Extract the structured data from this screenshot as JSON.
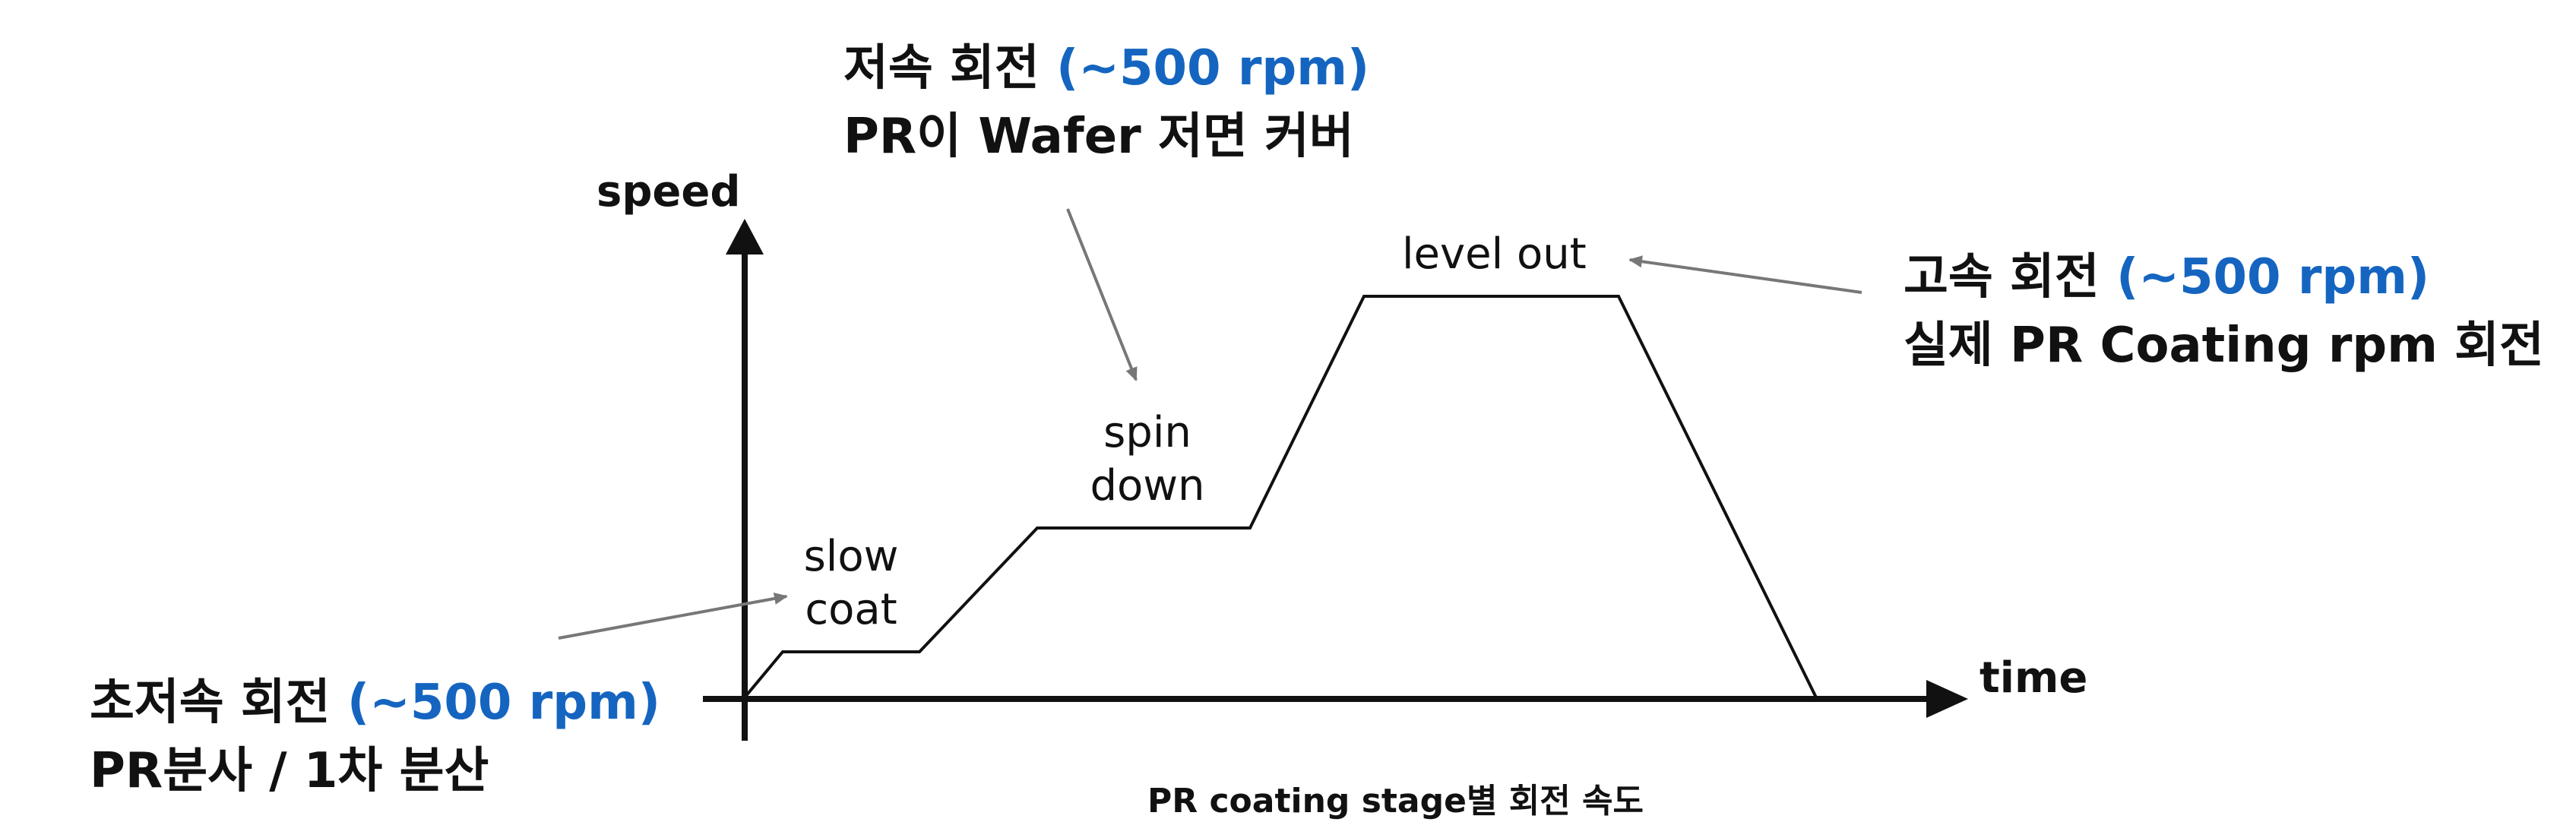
{
  "axes": {
    "y_label": "speed",
    "x_label": "time"
  },
  "stages": {
    "slow_coat": [
      "slow",
      "coat"
    ],
    "spin_down": [
      "spin",
      "down"
    ],
    "level_out": "level out"
  },
  "annotations": {
    "low": {
      "line1_main": "저속 회전 ",
      "line1_rpm": "(~500 rpm)",
      "line2": "PR이 Wafer 저면 커버"
    },
    "high": {
      "line1_main": "고속 회전 ",
      "line1_rpm": "(~500 rpm)",
      "line2": "실제 PR Coating rpm 회전"
    },
    "ultra_low": {
      "line1_main": "초저속 회전 ",
      "line1_rpm": "(~500 rpm)",
      "line2": "PR분사 / 1차 분산"
    }
  },
  "caption": "PR coating stage별 회전 속도",
  "colors": {
    "highlight": "#1565c0",
    "arrow": "#777777",
    "line": "#111111"
  }
}
